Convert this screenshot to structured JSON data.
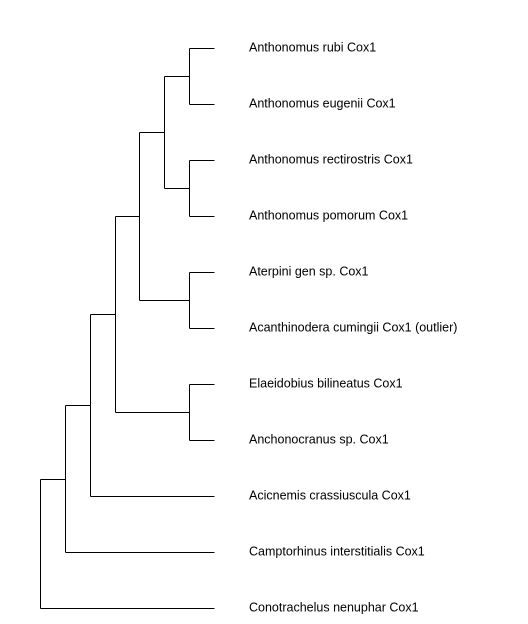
{
  "tree": {
    "leaves": [
      {
        "id": "rubi",
        "label": "Anthonomus rubi Cox1"
      },
      {
        "id": "eugenii",
        "label": "Anthonomus eugenii Cox1"
      },
      {
        "id": "rectirostris",
        "label": "Anthonomus rectirostris Cox1"
      },
      {
        "id": "pomorum",
        "label": "Anthonomus pomorum Cox1"
      },
      {
        "id": "aterpini",
        "label": "Aterpini gen sp. Cox1"
      },
      {
        "id": "acanthinodera",
        "label": "Acanthinodera cumingii Cox1 (outlier)"
      },
      {
        "id": "elaeidobius",
        "label": "Elaeidobius bilineatus Cox1"
      },
      {
        "id": "anchonocranus",
        "label": "Anchonocranus sp. Cox1"
      },
      {
        "id": "acicnemis",
        "label": "Acicnemis crassiuscula Cox1"
      },
      {
        "id": "camptorhinus",
        "label": "Camptorhinus interstitialis Cox1"
      },
      {
        "id": "conotrachelus",
        "label": "Conotrachelus nenuphar Cox1"
      }
    ],
    "clades": [
      {
        "id": "n1",
        "children": [
          "rubi",
          "eugenii"
        ]
      },
      {
        "id": "n2",
        "children": [
          "rectirostris",
          "pomorum"
        ]
      },
      {
        "id": "n3",
        "children": [
          "n1",
          "n2"
        ]
      },
      {
        "id": "n4",
        "children": [
          "aterpini",
          "acanthinodera"
        ]
      },
      {
        "id": "n5",
        "children": [
          "n3",
          "n4"
        ]
      },
      {
        "id": "n6",
        "children": [
          "elaeidobius",
          "anchonocranus"
        ]
      },
      {
        "id": "n7",
        "children": [
          "n5",
          "n6"
        ]
      },
      {
        "id": "n8",
        "children": [
          "n7",
          "acicnemis"
        ]
      },
      {
        "id": "n9",
        "children": [
          "n8",
          "camptorhinus"
        ]
      },
      {
        "id": "root",
        "children": [
          "n9",
          "conotrachelus"
        ]
      }
    ],
    "root": "root"
  }
}
